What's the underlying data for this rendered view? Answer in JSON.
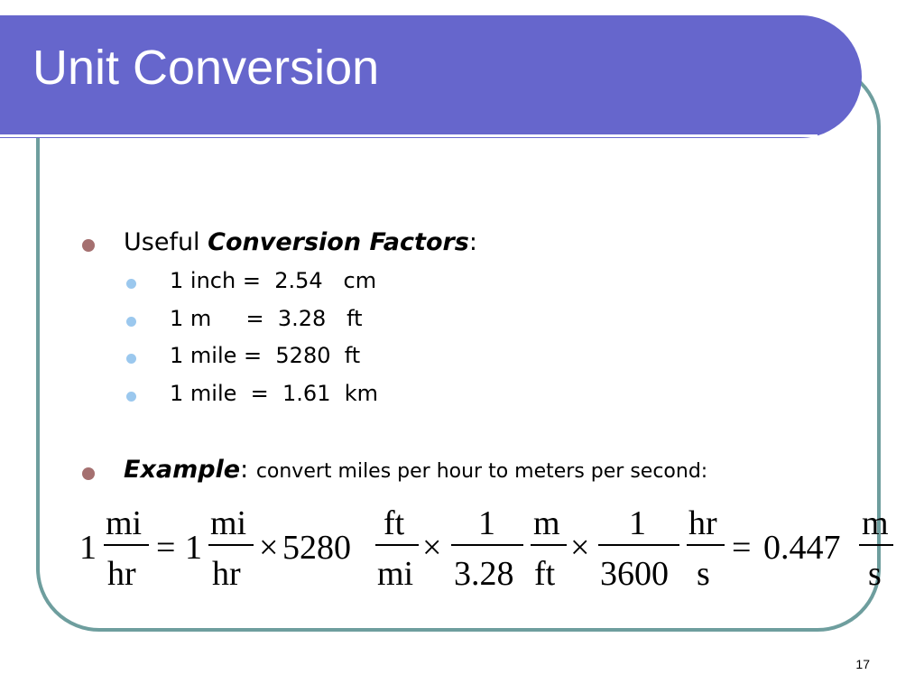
{
  "title": "Unit Conversion",
  "page_number": "17",
  "bullets": [
    {
      "prefix": "Useful ",
      "emphasis": "Conversion Factors",
      "suffix": ":",
      "sub_items": [
        {
          "lhs": "1 inch",
          "eq": "=",
          "value": "2.54",
          "unit": "cm"
        },
        {
          "lhs": "1 m",
          "eq": "=",
          "value": "3.28",
          "unit": "ft"
        },
        {
          "lhs": "1 mile",
          "eq": "=",
          "value": "5280",
          "unit": "ft"
        },
        {
          "lhs": "1 mile",
          "eq": "=",
          "value": "1.61",
          "unit": "km"
        }
      ]
    },
    {
      "emphasis": "Example",
      "colon": ":",
      "text": "convert miles per hour to meters per second:"
    }
  ],
  "equation": {
    "lead_1": "1",
    "f1_num": "mi",
    "f1_den": "hr",
    "eq1": "=",
    "lead_2": "1",
    "f2_num": "mi",
    "f2_den": "hr",
    "times1": "×",
    "mult": "5280",
    "f3_num": "ft",
    "f3_den": "mi",
    "times2": "×",
    "f4_num": "1",
    "f4_den": "3.28",
    "f5_num": "m",
    "f5_den": "ft",
    "times3": "×",
    "f6_num": "1",
    "f6_den": "3600",
    "f7_num": "hr",
    "f7_den": "s",
    "eq2": "=",
    "result": "0.447",
    "f8_num": "m",
    "f8_den": "s"
  },
  "colors": {
    "title_bar": "#6666cc",
    "frame_border": "#6e9e9e",
    "bullet_level1": "#a57070",
    "bullet_level2": "#9bc8ee"
  }
}
